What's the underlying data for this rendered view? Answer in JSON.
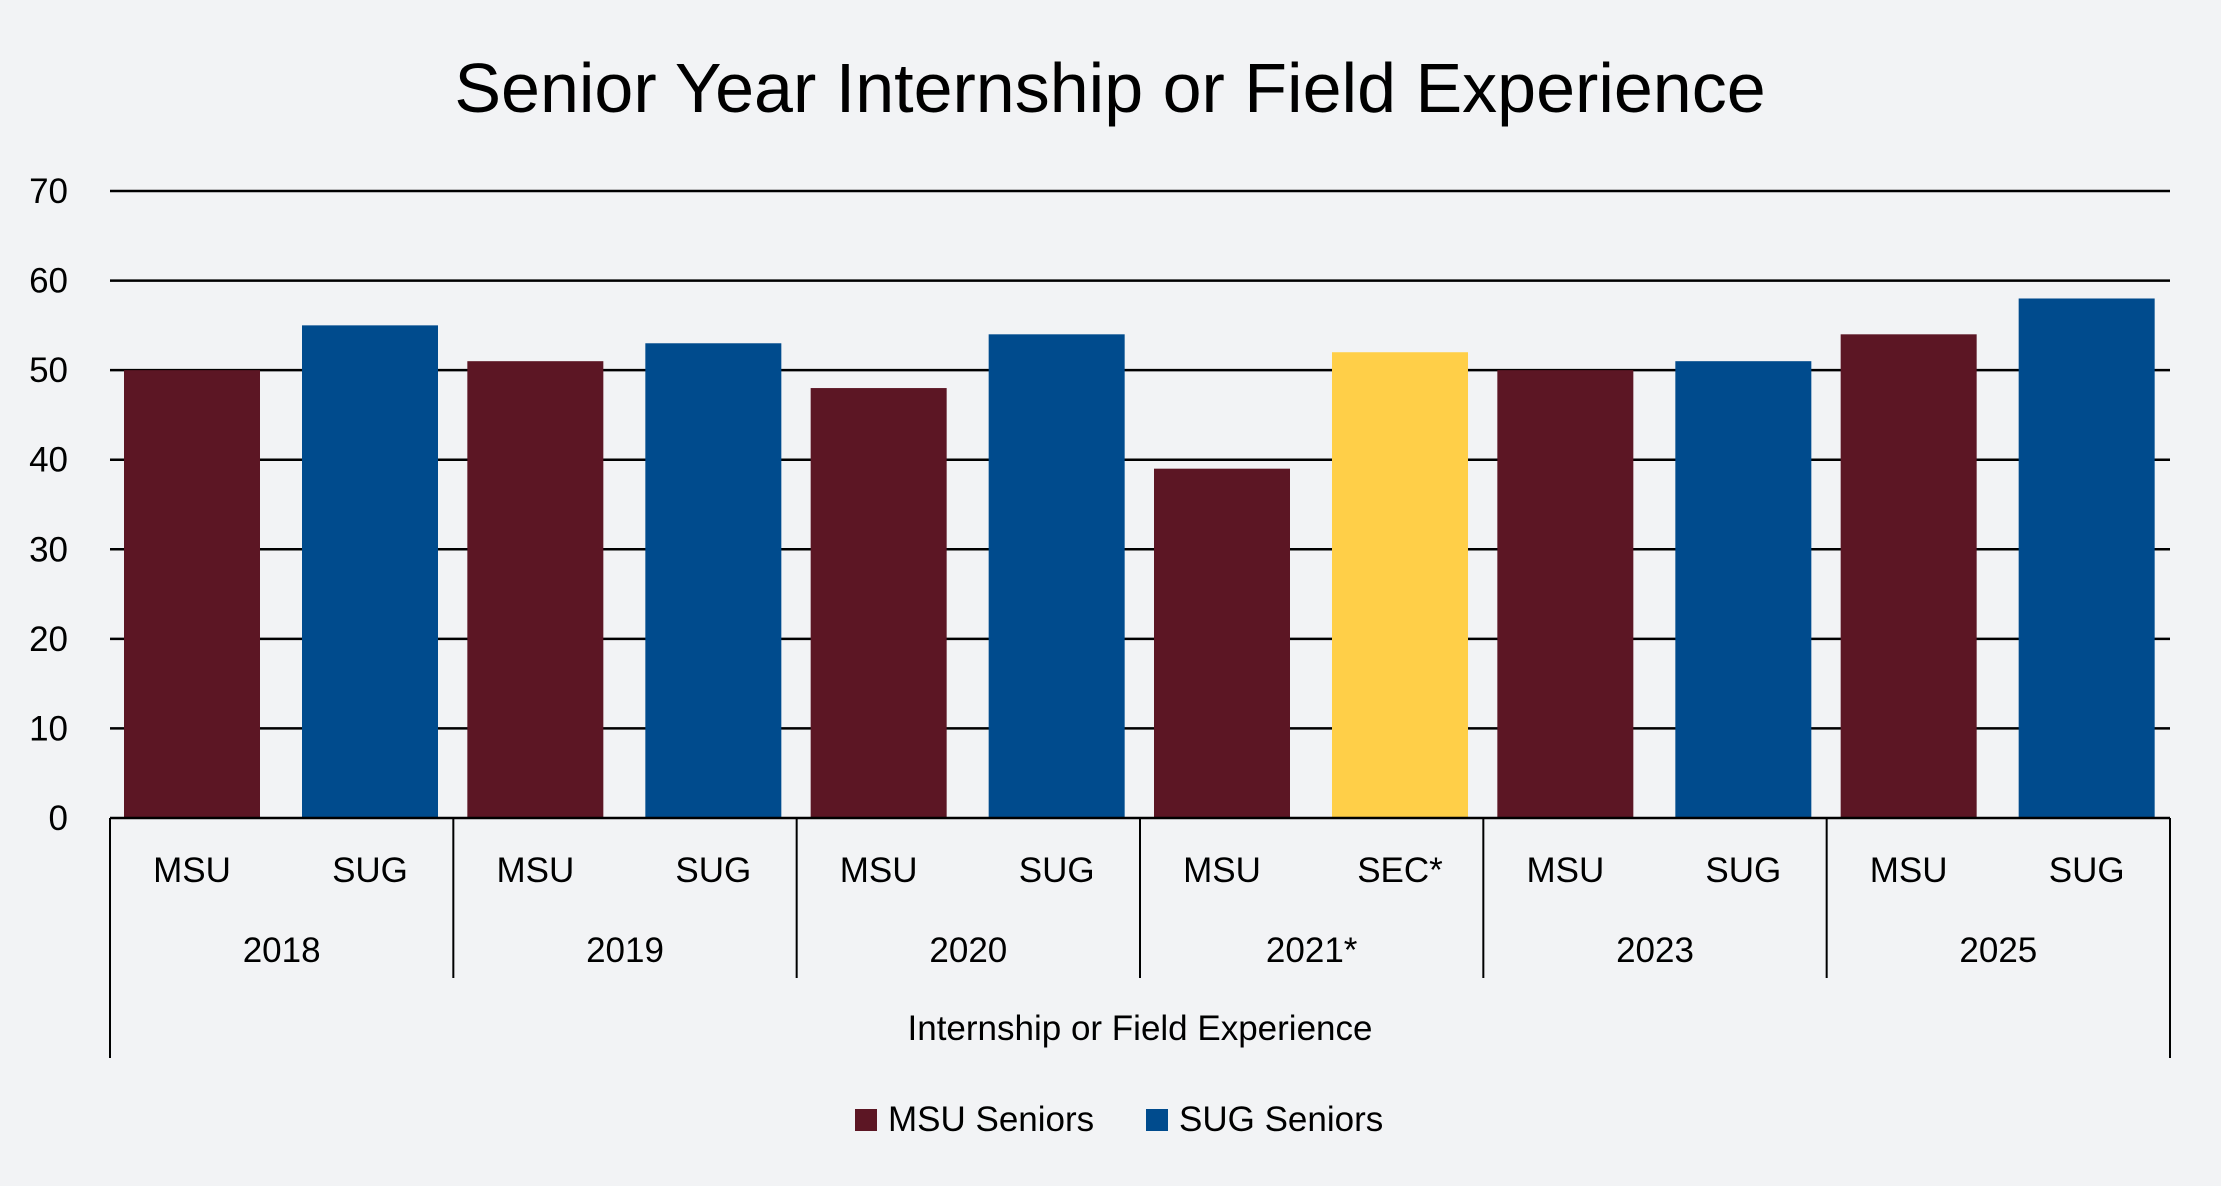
{
  "chart_data": {
    "type": "bar",
    "title": "Senior Year Internship or Field Experience",
    "xlabel": "Internship or Field Experience",
    "ylabel": "",
    "ylim": [
      0,
      70
    ],
    "yticks": [
      0,
      10,
      20,
      30,
      40,
      50,
      60,
      70
    ],
    "grid": true,
    "legend_position": "bottom",
    "groups": [
      {
        "year": "2018",
        "bars": [
          {
            "label": "MSU",
            "value": 50,
            "series": "msu"
          },
          {
            "label": "SUG",
            "value": 55,
            "series": "sug"
          }
        ]
      },
      {
        "year": "2019",
        "bars": [
          {
            "label": "MSU",
            "value": 51,
            "series": "msu"
          },
          {
            "label": "SUG",
            "value": 53,
            "series": "sug"
          }
        ]
      },
      {
        "year": "2020",
        "bars": [
          {
            "label": "MSU",
            "value": 48,
            "series": "msu"
          },
          {
            "label": "SUG",
            "value": 54,
            "series": "sug"
          }
        ]
      },
      {
        "year": "2021*",
        "bars": [
          {
            "label": "MSU",
            "value": 39,
            "series": "msu"
          },
          {
            "label": "SEC*",
            "value": 52,
            "series": "sec"
          }
        ]
      },
      {
        "year": "2023",
        "bars": [
          {
            "label": "MSU",
            "value": 50,
            "series": "msu"
          },
          {
            "label": "SUG",
            "value": 51,
            "series": "sug"
          }
        ]
      },
      {
        "year": "2025",
        "bars": [
          {
            "label": "MSU",
            "value": 54,
            "series": "msu"
          },
          {
            "label": "SUG",
            "value": 58,
            "series": "sug"
          }
        ]
      }
    ],
    "colors": {
      "msu": "#5c1624",
      "sug": "#004b8d",
      "sec": "#ffcf48"
    },
    "legend": [
      {
        "name": "MSU Seniors",
        "series": "msu"
      },
      {
        "name": "SUG Seniors",
        "series": "sug"
      }
    ]
  }
}
